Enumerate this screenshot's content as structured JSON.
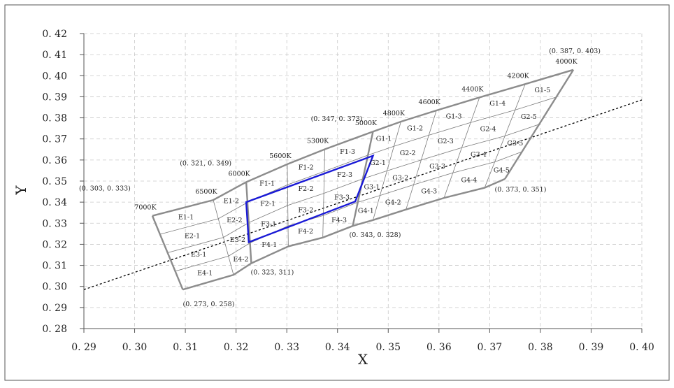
{
  "chart_data": {
    "type": "scatter",
    "title": "",
    "xlabel": "X",
    "ylabel": "Y",
    "xlim": [
      0.29,
      0.4
    ],
    "ylim": [
      0.28,
      0.42
    ],
    "x_ticks": [
      "0. 29",
      "0. 30",
      "0. 31",
      "0. 32",
      "0. 33",
      "0. 34",
      "0. 35",
      "0. 36",
      "0. 37",
      "0. 38",
      "0. 39",
      "0. 40"
    ],
    "y_ticks": [
      "0. 28",
      "0. 29",
      "0. 30",
      "0. 31",
      "0. 32",
      "0. 33",
      "0. 34",
      "0. 35",
      "0. 36",
      "0. 37",
      "0. 38",
      "0. 39",
      "0. 40",
      "0. 41",
      "0. 42"
    ],
    "grid": true,
    "colors": {
      "outline": "#8c8c8c",
      "highlight": "#1a1ad6",
      "inner": "#7a7a7a",
      "grid": "#c8c8c8",
      "locus": "#000000"
    },
    "planckian_locus": {
      "x": [
        0.29,
        0.4
      ],
      "y": [
        0.2985,
        0.3885
      ]
    },
    "outer_boundary": {
      "x": [
        0.3035,
        0.3865,
        0.3825,
        0.3795,
        0.3725,
        0.3095
      ],
      "y": [
        0.3335,
        0.4028,
        0.387,
        0.3769,
        0.351,
        0.2985
      ]
    },
    "cct_lines": [
      {
        "label": "7000K",
        "x": [
          0.3035,
          0.3095
        ],
        "y": [
          0.3335,
          0.2985
        ]
      },
      {
        "label": "6500K",
        "x": [
          0.3155,
          0.3195
        ],
        "y": [
          0.341,
          0.3055
        ]
      },
      {
        "label": "6000K",
        "x": [
          0.322,
          0.323
        ],
        "y": [
          0.3495,
          0.311
        ]
      },
      {
        "label": "5600K",
        "x": [
          0.3301,
          0.3303
        ],
        "y": [
          0.358,
          0.319
        ]
      },
      {
        "label": "5300K",
        "x": [
          0.3375,
          0.3371
        ],
        "y": [
          0.3651,
          0.3232
        ]
      },
      {
        "label": "5000K",
        "x": [
          0.347,
          0.343
        ],
        "y": [
          0.3735,
          0.3287
        ]
      },
      {
        "label": "4800K",
        "x": [
          0.3525,
          0.347
        ],
        "y": [
          0.3782,
          0.3315
        ]
      },
      {
        "label": "4600K",
        "x": [
          0.3595,
          0.3535
        ],
        "y": [
          0.3835,
          0.3365
        ]
      },
      {
        "label": "4400K",
        "x": [
          0.368,
          0.361
        ],
        "y": [
          0.3897,
          0.342
        ]
      },
      {
        "label": "4200K",
        "x": [
          0.377,
          0.369
        ],
        "y": [
          0.396,
          0.3468
        ]
      },
      {
        "label": "4000K",
        "x": [
          0.3865,
          0.373
        ],
        "y": [
          0.4028,
          0.351
        ]
      }
    ],
    "highlight_polygon": {
      "x": [
        0.322,
        0.347,
        0.3435,
        0.3225
      ],
      "y": [
        0.34,
        0.362,
        0.3403,
        0.321
      ]
    },
    "cct_label_text": [
      "7000K",
      "6500K",
      "6000K",
      "5600K",
      "5300K",
      "5000K",
      "4800K",
      "4600K",
      "4400K",
      "4200K",
      "4000K"
    ],
    "region_labels": [
      "E1-1",
      "E1-2",
      "E2-1",
      "E2-2",
      "E3-1",
      "E3-2",
      "E4-1",
      "E4-2",
      "F1-1",
      "F1-2",
      "F1-3",
      "F2-1",
      "F2-2",
      "F2-3",
      "F3-1",
      "F3-2",
      "F3-3",
      "F4-1",
      "F4-2",
      "F4-3",
      "G1-1",
      "G1-2",
      "G1-3",
      "G1-4",
      "G1-5",
      "G2-1",
      "G2-2",
      "G2-3",
      "G2-4",
      "G2-5",
      "G3-1",
      "G3-2",
      "G3-3",
      "G3-4",
      "G3-5",
      "G4-1",
      "G4-2",
      "G4-3",
      "G4-4",
      "G4-5"
    ],
    "corner_annotations": [
      "(0. 387, 0. 403)",
      "(0. 347, 0. 373)",
      "(0. 321, 0. 349)",
      "(0. 303, 0. 333)",
      "(0. 373, 0. 351)",
      "(0. 343, 0. 328)",
      "(0. 323, 311)",
      "(0. 273, 0. 258)"
    ]
  }
}
